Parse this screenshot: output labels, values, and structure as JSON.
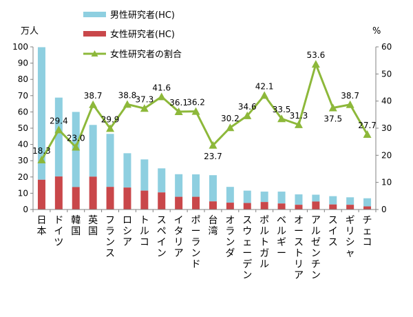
{
  "chart_data": {
    "type": "bar",
    "left_unit": "万人",
    "right_unit": "%",
    "left_ylim": [
      0,
      100
    ],
    "right_ylim": [
      0,
      60
    ],
    "left_ticks": [
      "0",
      "10",
      "20",
      "30",
      "40",
      "50",
      "60",
      "70",
      "80",
      "90",
      "100"
    ],
    "right_ticks": [
      "0",
      "10",
      "20",
      "30",
      "40",
      "50",
      "60"
    ],
    "legend_position": "top-center",
    "categories": [
      "日本",
      "ドイツ",
      "韓国",
      "英国",
      "フランス",
      "ロシア",
      "トルコ",
      "スペイン",
      "イタリア",
      "ポーランド",
      "台湾",
      "オランダ",
      "スウェーデン",
      "ポルトガル",
      "ベルギー",
      "オーストリア",
      "アルゼンチン",
      "スイス",
      "ギリシャ",
      "チェコ"
    ],
    "series": [
      {
        "name": "男性研究者(HC)",
        "kind": "bar",
        "axis": "left",
        "color": "#8ecfe0",
        "values": [
          81.5,
          48.5,
          46.2,
          31.8,
          32.6,
          21.1,
          19.2,
          14.8,
          13.9,
          13.8,
          16.1,
          9.7,
          7.6,
          6.4,
          7.3,
          6.4,
          4.2,
          5.1,
          4.6,
          5.0
        ]
      },
      {
        "name": "女性研究者(HC)",
        "kind": "bar",
        "axis": "left",
        "color": "#c9474a",
        "values": [
          18.3,
          20.3,
          13.8,
          20.2,
          13.9,
          13.5,
          11.6,
          10.5,
          7.8,
          7.8,
          5.0,
          4.2,
          4.0,
          4.6,
          3.7,
          2.9,
          4.9,
          3.1,
          2.9,
          1.9
        ]
      },
      {
        "name": "女性研究者の割合",
        "kind": "line",
        "axis": "right",
        "color": "#8db83a",
        "values": [
          18.3,
          29.4,
          23.0,
          38.7,
          29.9,
          38.8,
          37.3,
          41.6,
          36.1,
          36.2,
          23.7,
          30.2,
          34.6,
          42.1,
          33.5,
          31.3,
          53.6,
          37.5,
          38.7,
          27.7
        ],
        "labels": [
          "18.3",
          "29.4",
          "23.0",
          "38.7",
          "29.9",
          "38.8",
          "37.3",
          "41.6",
          "36.1",
          "36.2",
          "23.7",
          "30.2",
          "34.6",
          "42.1",
          "33.5",
          "31.3",
          "53.6",
          "37.5",
          "38.7",
          "27.7"
        ]
      }
    ]
  },
  "legend": {
    "male": "男性研究者(HC)",
    "female": "女性研究者(HC)",
    "ratio": "女性研究者の割合"
  }
}
